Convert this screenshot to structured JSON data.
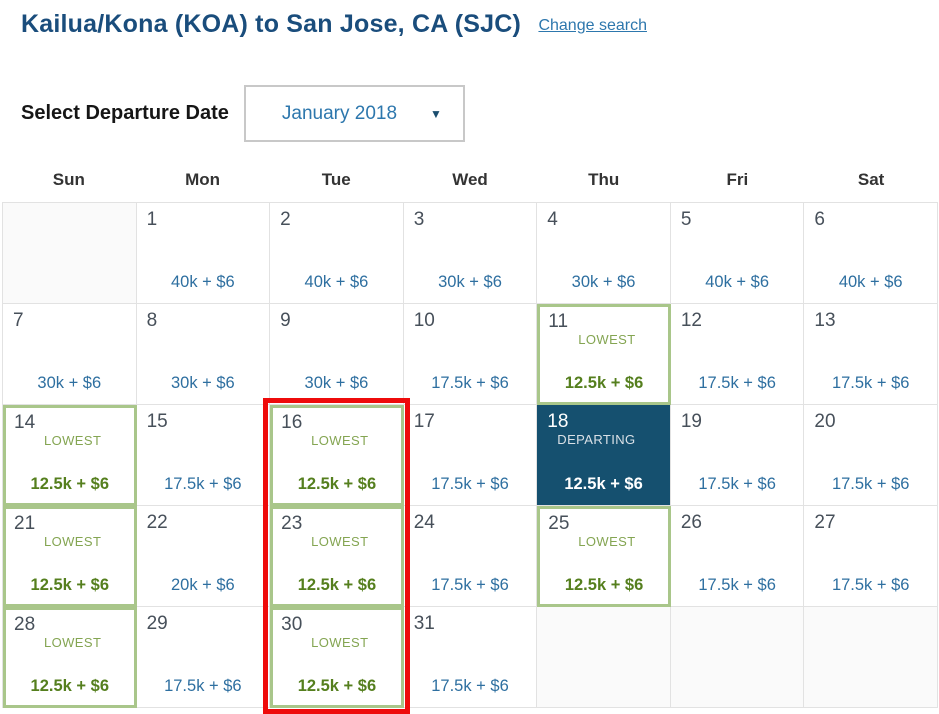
{
  "header": {
    "title": "Kailua/Kona (KOA) to San Jose, CA (SJC)",
    "change_search_label": "Change search"
  },
  "controls": {
    "label": "Select Departure Date",
    "month_value": "January 2018",
    "arrow_glyph": "▼"
  },
  "calendar": {
    "weekday_headers": [
      "Sun",
      "Mon",
      "Tue",
      "Wed",
      "Thu",
      "Fri",
      "Sat"
    ],
    "lowest_label": "LOWEST",
    "departing_label": "DEPARTING",
    "weeks": [
      [
        {
          "state": "empty"
        },
        {
          "day": "1",
          "price": "40k + $6",
          "state": "normal"
        },
        {
          "day": "2",
          "price": "40k + $6",
          "state": "normal"
        },
        {
          "day": "3",
          "price": "30k + $6",
          "state": "normal"
        },
        {
          "day": "4",
          "price": "30k + $6",
          "state": "normal"
        },
        {
          "day": "5",
          "price": "40k + $6",
          "state": "normal"
        },
        {
          "day": "6",
          "price": "40k + $6",
          "state": "normal"
        }
      ],
      [
        {
          "day": "7",
          "price": "30k + $6",
          "state": "normal"
        },
        {
          "day": "8",
          "price": "30k + $6",
          "state": "normal"
        },
        {
          "day": "9",
          "price": "30k + $6",
          "state": "normal"
        },
        {
          "day": "10",
          "price": "17.5k + $6",
          "state": "normal"
        },
        {
          "day": "11",
          "price": "12.5k + $6",
          "state": "lowest"
        },
        {
          "day": "12",
          "price": "17.5k + $6",
          "state": "normal"
        },
        {
          "day": "13",
          "price": "17.5k + $6",
          "state": "normal"
        }
      ],
      [
        {
          "day": "14",
          "price": "12.5k + $6",
          "state": "lowest"
        },
        {
          "day": "15",
          "price": "17.5k + $6",
          "state": "normal"
        },
        {
          "day": "16",
          "price": "12.5k + $6",
          "state": "lowest"
        },
        {
          "day": "17",
          "price": "17.5k + $6",
          "state": "normal"
        },
        {
          "day": "18",
          "price": "12.5k + $6",
          "state": "departing"
        },
        {
          "day": "19",
          "price": "17.5k + $6",
          "state": "normal"
        },
        {
          "day": "20",
          "price": "17.5k + $6",
          "state": "normal"
        }
      ],
      [
        {
          "day": "21",
          "price": "12.5k + $6",
          "state": "lowest"
        },
        {
          "day": "22",
          "price": "20k + $6",
          "state": "normal"
        },
        {
          "day": "23",
          "price": "12.5k + $6",
          "state": "lowest"
        },
        {
          "day": "24",
          "price": "17.5k + $6",
          "state": "normal"
        },
        {
          "day": "25",
          "price": "12.5k + $6",
          "state": "lowest"
        },
        {
          "day": "26",
          "price": "17.5k + $6",
          "state": "normal"
        },
        {
          "day": "27",
          "price": "17.5k + $6",
          "state": "normal"
        }
      ],
      [
        {
          "day": "28",
          "price": "12.5k + $6",
          "state": "lowest"
        },
        {
          "day": "29",
          "price": "17.5k + $6",
          "state": "normal"
        },
        {
          "day": "30",
          "price": "12.5k + $6",
          "state": "lowest"
        },
        {
          "day": "31",
          "price": "17.5k + $6",
          "state": "normal"
        },
        {
          "state": "empty"
        },
        {
          "state": "empty"
        },
        {
          "state": "empty"
        }
      ]
    ]
  },
  "colors": {
    "title_navy": "#1a4d7c",
    "link_blue": "#2d77ad",
    "price_blue": "#2e6fa0",
    "lowest_border_green": "#a9c68a",
    "lowest_label_green": "#84a552",
    "lowest_price_green": "#557f1e",
    "departing_bg_navy": "#15506f",
    "highlight_red": "#ee0b0b",
    "empty_cell_gray": "#fafafa"
  }
}
